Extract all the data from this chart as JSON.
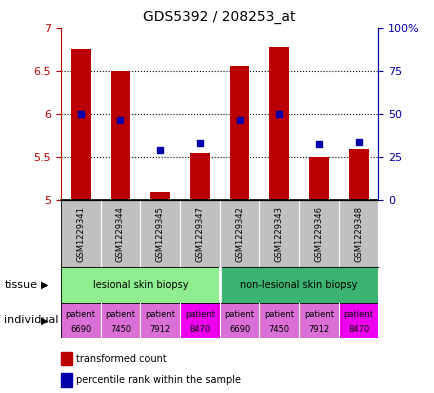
{
  "title": "GDS5392 / 208253_at",
  "samples": [
    "GSM1229341",
    "GSM1229344",
    "GSM1229345",
    "GSM1229347",
    "GSM1229342",
    "GSM1229343",
    "GSM1229346",
    "GSM1229348"
  ],
  "red_values": [
    6.75,
    6.5,
    5.1,
    5.55,
    6.55,
    6.78,
    5.5,
    5.6
  ],
  "blue_values": [
    6.0,
    5.93,
    5.58,
    5.67,
    5.93,
    6.0,
    5.65,
    5.68
  ],
  "ylim_left": [
    5.0,
    7.0
  ],
  "ylim_right": [
    0,
    100
  ],
  "yticks_left": [
    5.0,
    5.5,
    6.0,
    6.5,
    7.0
  ],
  "ytick_labels_left": [
    "5",
    "5.5",
    "6",
    "6.5",
    "7"
  ],
  "yticks_right": [
    0,
    25,
    50,
    75,
    100
  ],
  "ytick_labels_right": [
    "0",
    "25",
    "50",
    "75",
    "100%"
  ],
  "tissue_groups": [
    {
      "label": "lesional skin biopsy",
      "start": 0,
      "end": 4,
      "color": "#90EE90"
    },
    {
      "label": "non-lesional skin biopsy",
      "start": 4,
      "end": 8,
      "color": "#3CB371"
    }
  ],
  "individuals": [
    "patient\n6690",
    "patient\n7450",
    "patient\n7912",
    "patient\n8470",
    "patient\n6690",
    "patient\n7450",
    "patient\n7912",
    "patient\n8470"
  ],
  "individual_colors": [
    "#DA70D6",
    "#DA70D6",
    "#DA70D6",
    "#EE00EE",
    "#DA70D6",
    "#DA70D6",
    "#DA70D6",
    "#EE00EE"
  ],
  "bar_color": "#BB0000",
  "dot_color": "#0000AA",
  "left_axis_color": "#BB0000",
  "right_axis_color": "#0000AA",
  "sample_bg_color": "#C0C0C0",
  "grid_dotted_color": "#000000",
  "legend_items": [
    {
      "color": "#BB0000",
      "label": "transformed count"
    },
    {
      "color": "#0000AA",
      "label": "percentile rank within the sample"
    }
  ]
}
